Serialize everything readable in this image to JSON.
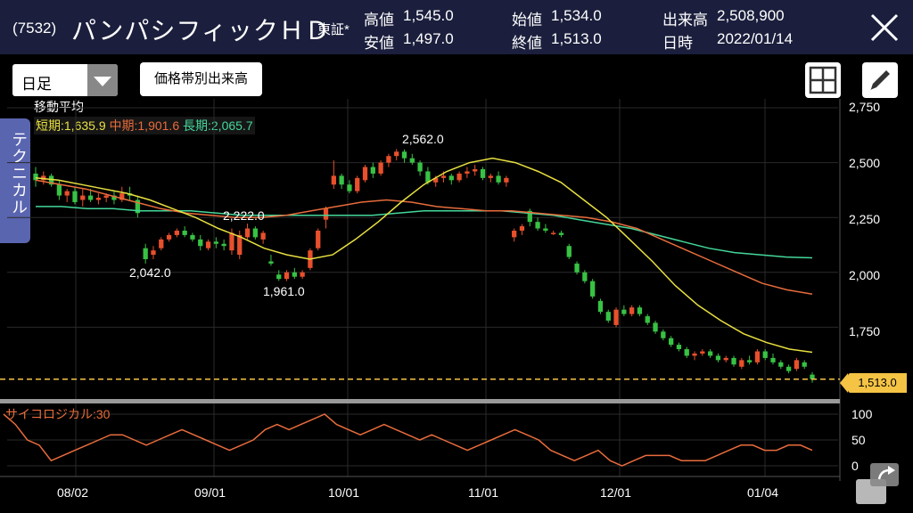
{
  "header": {
    "code": "(7532)",
    "name": "パンパシフィックＨＤ",
    "market": "東証*",
    "quotes": [
      {
        "label": "高値",
        "value": "1,545.0"
      },
      {
        "label": "安値",
        "value": "1,497.0"
      },
      {
        "label": "始値",
        "value": "1,534.0"
      },
      {
        "label": "終値",
        "value": "1,513.0"
      },
      {
        "label": "出来高",
        "value": "2,508,900"
      },
      {
        "label": "日時",
        "value": "2022/01/14"
      }
    ]
  },
  "toolbar": {
    "period_select": "日足",
    "volume_button": "価格帯別出来高"
  },
  "technical_tab": "テクニカル",
  "moving_average": {
    "title": "移動平均",
    "short_label": "短期:1,635.9",
    "mid_label": "中期:1,901.6",
    "long_label": "長期:2,065.7"
  },
  "price_axis": [
    "2,750",
    "2,500",
    "2,250",
    "2,000",
    "1,750"
  ],
  "last_price": "1,513.0",
  "annotations": {
    "a1": "2,562.0",
    "a2": "2,222.0",
    "a3": "2,042.0",
    "a4": "1,961.0"
  },
  "oscillator": {
    "label": "サイコロジカル:30",
    "axis": [
      "100",
      "50",
      "0"
    ]
  },
  "date_axis": [
    "08/02",
    "09/01",
    "10/01",
    "11/01",
    "12/01",
    "01/04"
  ],
  "colors": {
    "header_bg": "#1b1f3d",
    "up": "#e8502c",
    "down": "#38c244",
    "ma_short": "#e8e040",
    "ma_mid": "#e86c3c",
    "ma_long": "#44d79a",
    "last_price": "#f5c445"
  },
  "chart_data": {
    "type": "candlestick",
    "title": "",
    "ylim": [
      1500,
      2750
    ],
    "candles": [
      {
        "o": 2450,
        "h": 2480,
        "l": 2390,
        "c": 2420
      },
      {
        "o": 2420,
        "h": 2460,
        "l": 2400,
        "c": 2440
      },
      {
        "o": 2440,
        "h": 2450,
        "l": 2390,
        "c": 2400
      },
      {
        "o": 2400,
        "h": 2420,
        "l": 2330,
        "c": 2350
      },
      {
        "o": 2350,
        "h": 2380,
        "l": 2320,
        "c": 2370
      },
      {
        "o": 2370,
        "h": 2390,
        "l": 2310,
        "c": 2320
      },
      {
        "o": 2330,
        "h": 2380,
        "l": 2300,
        "c": 2350
      },
      {
        "o": 2350,
        "h": 2380,
        "l": 2320,
        "c": 2330
      },
      {
        "o": 2330,
        "h": 2360,
        "l": 2310,
        "c": 2340
      },
      {
        "o": 2340,
        "h": 2360,
        "l": 2320,
        "c": 2350
      },
      {
        "o": 2350,
        "h": 2370,
        "l": 2310,
        "c": 2330
      },
      {
        "o": 2330,
        "h": 2390,
        "l": 2320,
        "c": 2360
      },
      {
        "o": 2360,
        "h": 2390,
        "l": 2330,
        "c": 2350
      },
      {
        "o": 2330,
        "h": 2350,
        "l": 2250,
        "c": 2270
      },
      {
        "o": 2110,
        "h": 2130,
        "l": 2040,
        "c": 2060
      },
      {
        "o": 2080,
        "h": 2120,
        "l": 2060,
        "c": 2100
      },
      {
        "o": 2110,
        "h": 2160,
        "l": 2100,
        "c": 2150
      },
      {
        "o": 2150,
        "h": 2180,
        "l": 2140,
        "c": 2170
      },
      {
        "o": 2170,
        "h": 2200,
        "l": 2160,
        "c": 2190
      },
      {
        "o": 2190,
        "h": 2210,
        "l": 2160,
        "c": 2170
      },
      {
        "o": 2170,
        "h": 2180,
        "l": 2140,
        "c": 2150
      },
      {
        "o": 2150,
        "h": 2170,
        "l": 2100,
        "c": 2120
      },
      {
        "o": 2110,
        "h": 2150,
        "l": 2100,
        "c": 2140
      },
      {
        "o": 2140,
        "h": 2160,
        "l": 2110,
        "c": 2130
      },
      {
        "o": 2130,
        "h": 2150,
        "l": 2100,
        "c": 2120
      },
      {
        "o": 2100,
        "h": 2200,
        "l": 2080,
        "c": 2180
      },
      {
        "o": 2080,
        "h": 2190,
        "l": 2060,
        "c": 2170
      },
      {
        "o": 2160,
        "h": 2222,
        "l": 2150,
        "c": 2200
      },
      {
        "o": 2200,
        "h": 2210,
        "l": 2150,
        "c": 2160
      },
      {
        "o": 2150,
        "h": 2190,
        "l": 2130,
        "c": 2180
      },
      {
        "o": 2050,
        "h": 2080,
        "l": 2030,
        "c": 2040
      },
      {
        "o": 1990,
        "h": 2010,
        "l": 1961,
        "c": 1970
      },
      {
        "o": 1970,
        "h": 2010,
        "l": 1960,
        "c": 2000
      },
      {
        "o": 2000,
        "h": 2020,
        "l": 1970,
        "c": 1980
      },
      {
        "o": 1980,
        "h": 2010,
        "l": 1970,
        "c": 2000
      },
      {
        "o": 2020,
        "h": 2110,
        "l": 2010,
        "c": 2100
      },
      {
        "o": 2110,
        "h": 2200,
        "l": 2100,
        "c": 2190
      },
      {
        "o": 2240,
        "h": 2300,
        "l": 2200,
        "c": 2290
      },
      {
        "o": 2400,
        "h": 2510,
        "l": 2380,
        "c": 2440
      },
      {
        "o": 2440,
        "h": 2450,
        "l": 2380,
        "c": 2400
      },
      {
        "o": 2400,
        "h": 2420,
        "l": 2360,
        "c": 2370
      },
      {
        "o": 2370,
        "h": 2440,
        "l": 2360,
        "c": 2430
      },
      {
        "o": 2420,
        "h": 2490,
        "l": 2410,
        "c": 2480
      },
      {
        "o": 2480,
        "h": 2500,
        "l": 2430,
        "c": 2450
      },
      {
        "o": 2450,
        "h": 2510,
        "l": 2440,
        "c": 2500
      },
      {
        "o": 2500,
        "h": 2540,
        "l": 2480,
        "c": 2530
      },
      {
        "o": 2530,
        "h": 2562,
        "l": 2510,
        "c": 2550
      },
      {
        "o": 2550,
        "h": 2560,
        "l": 2500,
        "c": 2520
      },
      {
        "o": 2520,
        "h": 2540,
        "l": 2490,
        "c": 2500
      },
      {
        "o": 2500,
        "h": 2510,
        "l": 2440,
        "c": 2460
      },
      {
        "o": 2460,
        "h": 2480,
        "l": 2400,
        "c": 2410
      },
      {
        "o": 2410,
        "h": 2440,
        "l": 2390,
        "c": 2430
      },
      {
        "o": 2430,
        "h": 2460,
        "l": 2410,
        "c": 2440
      },
      {
        "o": 2440,
        "h": 2450,
        "l": 2400,
        "c": 2420
      },
      {
        "o": 2420,
        "h": 2460,
        "l": 2410,
        "c": 2450
      },
      {
        "o": 2450,
        "h": 2480,
        "l": 2430,
        "c": 2460
      },
      {
        "o": 2460,
        "h": 2490,
        "l": 2440,
        "c": 2470
      },
      {
        "o": 2470,
        "h": 2480,
        "l": 2420,
        "c": 2430
      },
      {
        "o": 2430,
        "h": 2450,
        "l": 2410,
        "c": 2440
      },
      {
        "o": 2440,
        "h": 2460,
        "l": 2400,
        "c": 2410
      },
      {
        "o": 2410,
        "h": 2440,
        "l": 2390,
        "c": 2430
      },
      {
        "o": 2160,
        "h": 2200,
        "l": 2140,
        "c": 2190
      },
      {
        "o": 2190,
        "h": 2220,
        "l": 2170,
        "c": 2210
      },
      {
        "o": 2280,
        "h": 2290,
        "l": 2210,
        "c": 2230
      },
      {
        "o": 2230,
        "h": 2250,
        "l": 2190,
        "c": 2200
      },
      {
        "o": 2200,
        "h": 2220,
        "l": 2180,
        "c": 2190
      },
      {
        "o": 2180,
        "h": 2190,
        "l": 2170,
        "c": 2180
      },
      {
        "o": 2180,
        "h": 2190,
        "l": 2160,
        "c": 2170
      },
      {
        "o": 2120,
        "h": 2130,
        "l": 2060,
        "c": 2070
      },
      {
        "o": 2040,
        "h": 2050,
        "l": 1990,
        "c": 2000
      },
      {
        "o": 2000,
        "h": 2010,
        "l": 1950,
        "c": 1960
      },
      {
        "o": 1960,
        "h": 1970,
        "l": 1880,
        "c": 1890
      },
      {
        "o": 1870,
        "h": 1880,
        "l": 1810,
        "c": 1820
      },
      {
        "o": 1820,
        "h": 1830,
        "l": 1770,
        "c": 1780
      },
      {
        "o": 1760,
        "h": 1840,
        "l": 1750,
        "c": 1830
      },
      {
        "o": 1830,
        "h": 1850,
        "l": 1800,
        "c": 1810
      },
      {
        "o": 1810,
        "h": 1850,
        "l": 1800,
        "c": 1840
      },
      {
        "o": 1840,
        "h": 1850,
        "l": 1800,
        "c": 1810
      },
      {
        "o": 1800,
        "h": 1810,
        "l": 1760,
        "c": 1770
      },
      {
        "o": 1770,
        "h": 1780,
        "l": 1720,
        "c": 1730
      },
      {
        "o": 1730,
        "h": 1740,
        "l": 1690,
        "c": 1700
      },
      {
        "o": 1700,
        "h": 1710,
        "l": 1660,
        "c": 1670
      },
      {
        "o": 1670,
        "h": 1680,
        "l": 1640,
        "c": 1650
      },
      {
        "o": 1650,
        "h": 1660,
        "l": 1610,
        "c": 1620
      },
      {
        "o": 1620,
        "h": 1640,
        "l": 1600,
        "c": 1630
      },
      {
        "o": 1630,
        "h": 1650,
        "l": 1620,
        "c": 1640
      },
      {
        "o": 1640,
        "h": 1650,
        "l": 1610,
        "c": 1620
      },
      {
        "o": 1620,
        "h": 1630,
        "l": 1590,
        "c": 1600
      },
      {
        "o": 1600,
        "h": 1620,
        "l": 1590,
        "c": 1610
      },
      {
        "o": 1610,
        "h": 1620,
        "l": 1570,
        "c": 1580
      },
      {
        "o": 1570,
        "h": 1610,
        "l": 1560,
        "c": 1600
      },
      {
        "o": 1600,
        "h": 1620,
        "l": 1580,
        "c": 1590
      },
      {
        "o": 1590,
        "h": 1650,
        "l": 1580,
        "c": 1640
      },
      {
        "o": 1640,
        "h": 1650,
        "l": 1600,
        "c": 1610
      },
      {
        "o": 1610,
        "h": 1630,
        "l": 1580,
        "c": 1590
      },
      {
        "o": 1590,
        "h": 1600,
        "l": 1560,
        "c": 1570
      },
      {
        "o": 1570,
        "h": 1580,
        "l": 1540,
        "c": 1550
      },
      {
        "o": 1560,
        "h": 1610,
        "l": 1550,
        "c": 1600
      },
      {
        "o": 1590,
        "h": 1600,
        "l": 1560,
        "c": 1570
      },
      {
        "o": 1534,
        "h": 1545,
        "l": 1497,
        "c": 1513
      }
    ],
    "ma_short": [
      2430,
      2420,
      2400,
      2380,
      2360,
      2330,
      2290,
      2250,
      2200,
      2160,
      2110,
      2080,
      2060,
      2080,
      2150,
      2230,
      2320,
      2400,
      2460,
      2500,
      2520,
      2500,
      2460,
      2410,
      2330,
      2250,
      2150,
      2050,
      1940,
      1850,
      1780,
      1720,
      1680,
      1650,
      1636
    ],
    "ma_mid": [
      2420,
      2400,
      2380,
      2350,
      2320,
      2290,
      2270,
      2260,
      2250,
      2250,
      2260,
      2280,
      2300,
      2320,
      2330,
      2320,
      2300,
      2290,
      2280,
      2280,
      2270,
      2260,
      2250,
      2230,
      2200,
      2150,
      2100,
      2050,
      2000,
      1950,
      1920,
      1901
    ],
    "ma_long": [
      2300,
      2300,
      2290,
      2290,
      2280,
      2280,
      2280,
      2270,
      2260,
      2260,
      2260,
      2260,
      2260,
      2260,
      2270,
      2280,
      2280,
      2280,
      2280,
      2270,
      2260,
      2240,
      2220,
      2200,
      2170,
      2140,
      2110,
      2090,
      2080,
      2070,
      2066
    ],
    "psychological": [
      100,
      80,
      50,
      40,
      10,
      20,
      30,
      40,
      50,
      60,
      60,
      50,
      40,
      50,
      60,
      70,
      60,
      50,
      40,
      30,
      40,
      50,
      70,
      80,
      70,
      80,
      90,
      100,
      80,
      70,
      60,
      70,
      80,
      70,
      60,
      50,
      60,
      50,
      40,
      30,
      40,
      50,
      60,
      70,
      60,
      50,
      30,
      20,
      10,
      20,
      30,
      10,
      0,
      10,
      20,
      20,
      20,
      10,
      10,
      10,
      20,
      30,
      40,
      40,
      30,
      30,
      40,
      40,
      30
    ],
    "psychological_range": [
      0,
      100
    ]
  }
}
